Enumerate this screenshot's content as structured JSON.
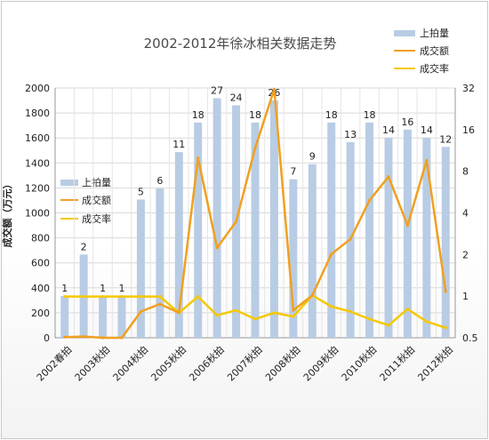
{
  "chart_data": {
    "type": "bar",
    "title": "2002-2012年徐冰相关数据走势",
    "xlabel": "",
    "ylabel": "成交额（万元）",
    "ylim": [
      0,
      2000
    ],
    "y_ticks": [
      0,
      200,
      400,
      600,
      800,
      1000,
      1200,
      1400,
      1600,
      1800,
      2000
    ],
    "y2_scale": "log2",
    "y2_ticks": [
      0.5,
      1,
      2,
      4,
      8,
      16,
      32
    ],
    "x_tick_labels": [
      "2002春拍",
      "2003秋拍",
      "2004秋拍",
      "2005秋拍",
      "2006秋拍",
      "2007秋拍",
      "2008秋拍",
      "2009秋拍",
      "2010秋拍",
      "2011秋拍",
      "2012秋拍"
    ],
    "grid": true,
    "legend_entries": [
      "上拍量",
      "成交额",
      "成交率"
    ],
    "legend_placement": "top-right and inside-left",
    "colors": {
      "bar": "#b8cce4",
      "amount": "#f0a020",
      "rate": "#f5c800"
    },
    "series": [
      {
        "name": "上拍量",
        "axis": "right",
        "values": [
          1,
          2,
          1,
          1,
          5,
          6,
          11,
          18,
          27,
          24,
          18,
          26,
          7,
          9,
          18,
          13,
          18,
          14,
          16,
          14,
          12
        ],
        "data_labels": [
          "1",
          "2",
          "1",
          "1",
          "5",
          "6",
          "11",
          "18",
          "27",
          "24",
          "18",
          "26",
          "7",
          "9",
          "18",
          "13",
          "18",
          "14",
          "16",
          "14",
          "12"
        ]
      },
      {
        "name": "成交额",
        "axis": "left",
        "values": [
          5,
          10,
          0,
          0,
          210,
          270,
          200,
          1440,
          720,
          930,
          1520,
          1990,
          220,
          340,
          670,
          790,
          1100,
          1290,
          900,
          1420,
          370
        ]
      },
      {
        "name": "成交率",
        "axis": "left",
        "values": [
          330,
          330,
          330,
          330,
          330,
          330,
          200,
          330,
          180,
          220,
          150,
          200,
          170,
          340,
          250,
          210,
          150,
          100,
          230,
          130,
          80
        ]
      }
    ]
  }
}
